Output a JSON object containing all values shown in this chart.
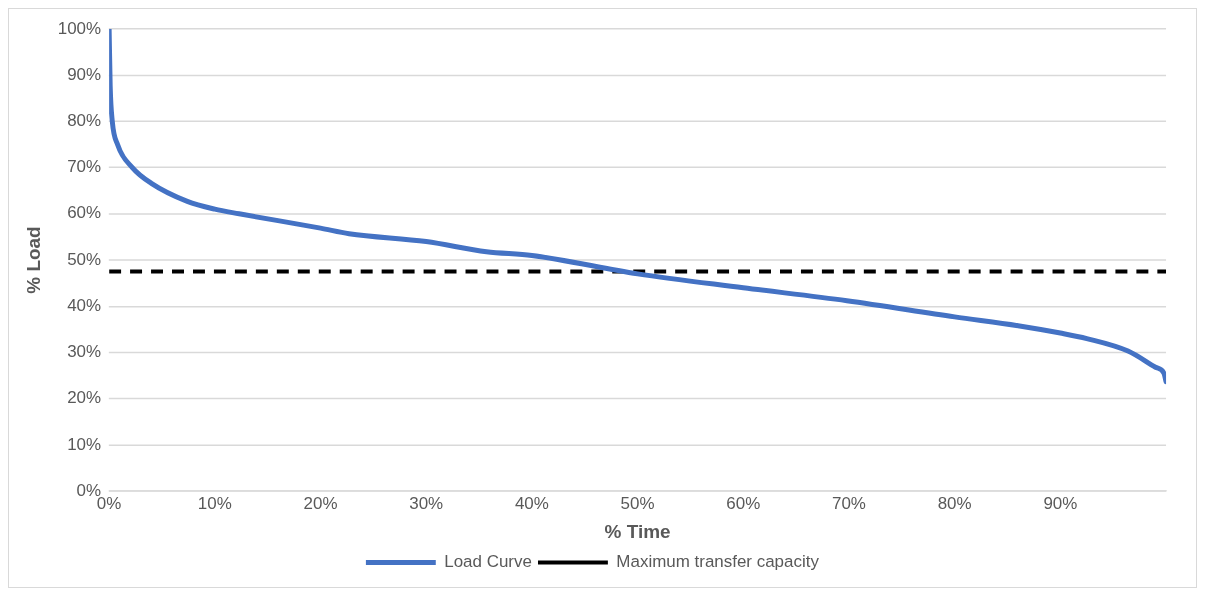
{
  "chart_data": {
    "type": "line",
    "xlabel": "% Time",
    "ylabel": "% Load",
    "xlim": [
      0,
      100
    ],
    "ylim": [
      0,
      100
    ],
    "xticks": [
      {
        "value": 0,
        "label": "0%"
      },
      {
        "value": 10,
        "label": "10%"
      },
      {
        "value": 20,
        "label": "20%"
      },
      {
        "value": 30,
        "label": "30%"
      },
      {
        "value": 40,
        "label": "40%"
      },
      {
        "value": 50,
        "label": "50%"
      },
      {
        "value": 60,
        "label": "60%"
      },
      {
        "value": 70,
        "label": "70%"
      },
      {
        "value": 80,
        "label": "80%"
      },
      {
        "value": 90,
        "label": "90%"
      }
    ],
    "yticks": [
      {
        "value": 0,
        "label": "0%"
      },
      {
        "value": 10,
        "label": "10%"
      },
      {
        "value": 20,
        "label": "20%"
      },
      {
        "value": 30,
        "label": "30%"
      },
      {
        "value": 40,
        "label": "40%"
      },
      {
        "value": 50,
        "label": "50%"
      },
      {
        "value": 60,
        "label": "60%"
      },
      {
        "value": 70,
        "label": "70%"
      },
      {
        "value": 80,
        "label": "80%"
      },
      {
        "value": 90,
        "label": "90%"
      },
      {
        "value": 100,
        "label": "100%"
      }
    ],
    "grid": "y",
    "legend": "bottom",
    "marker": "none",
    "series": [
      {
        "name": "Load Curve",
        "color": "#4472c4",
        "line_style": "solid",
        "x": [
          0,
          0.1,
          0.3,
          0.8,
          2.2,
          4,
          7.4,
          10,
          12.3,
          20,
          22.7,
          30,
          35.7,
          40,
          50,
          60,
          69.8,
          80,
          86,
          90,
          92.5,
          96.4,
          99,
          99.8,
          100
        ],
        "values": [
          100,
          87.7,
          80,
          75,
          70,
          66.6,
          62.7,
          61,
          60,
          56.9,
          55.7,
          54,
          51.8,
          51,
          47,
          44,
          41.2,
          37.7,
          35.8,
          34.2,
          33,
          30.3,
          26.8,
          25.5,
          23.7
        ]
      },
      {
        "name": "Maximum transfer capacity",
        "color": "#000000",
        "line_style": "dashed",
        "x": [
          0,
          100
        ],
        "values": [
          47.5,
          47.5
        ]
      }
    ]
  }
}
